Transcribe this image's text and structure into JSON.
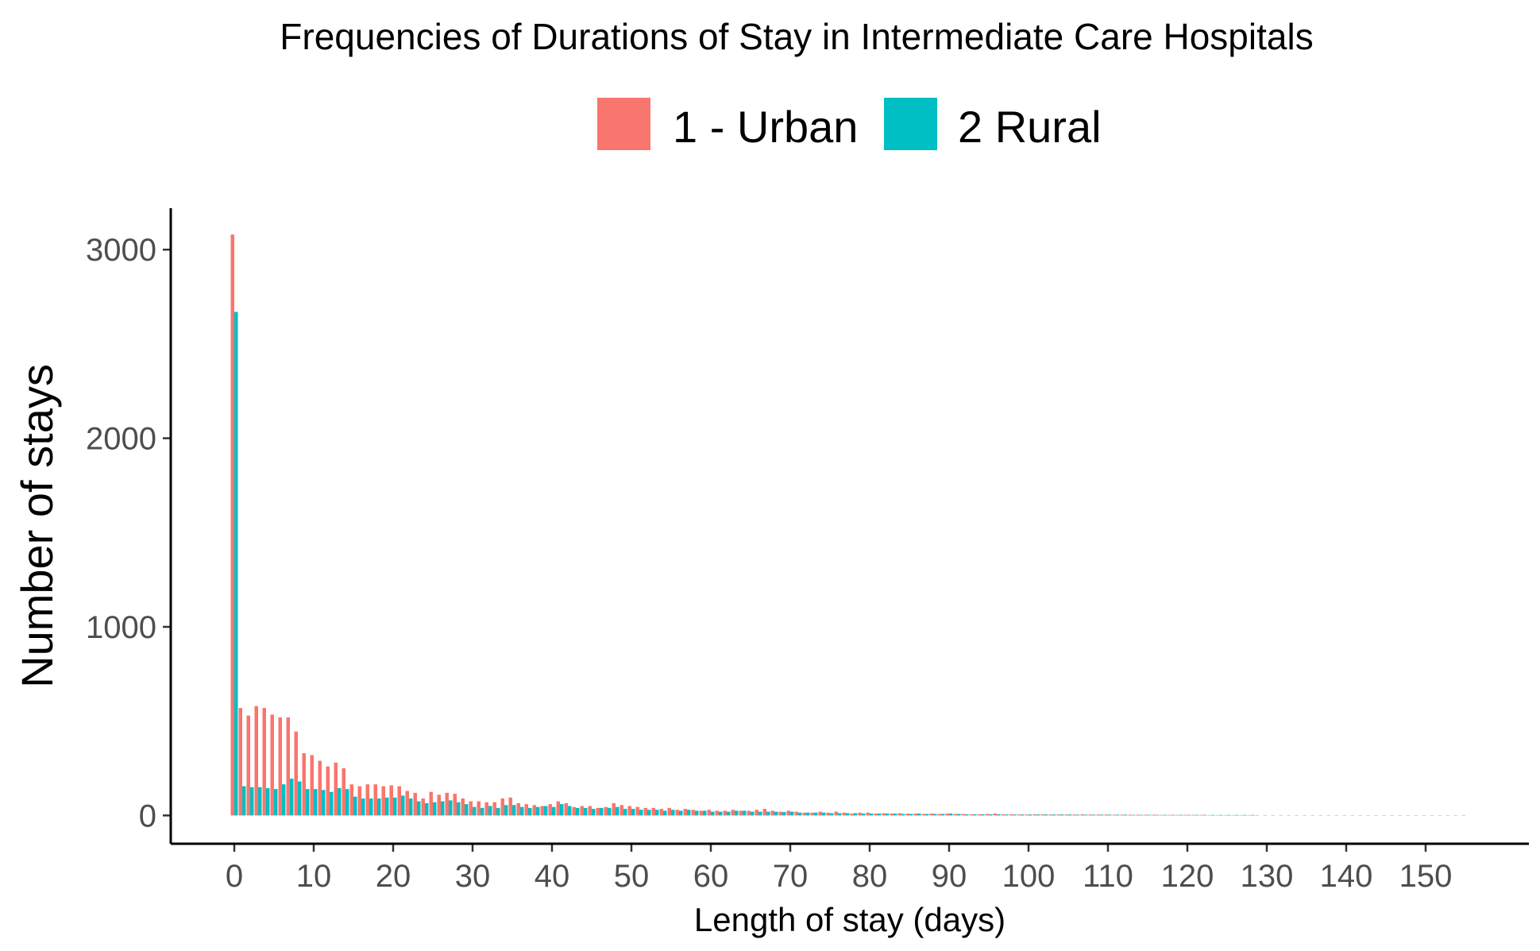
{
  "chart_data": {
    "type": "bar",
    "title": "Frequencies of Durations of Stay in Intermediate Care Hospitals",
    "xlabel": "Length of stay (days)",
    "ylabel": "Number of stays",
    "xlim": [
      -8,
      163
    ],
    "ylim": [
      -150,
      3220
    ],
    "x_ticks": [
      0,
      10,
      20,
      30,
      40,
      50,
      60,
      70,
      80,
      90,
      100,
      110,
      120,
      130,
      140,
      150
    ],
    "y_ticks": [
      0,
      1000,
      2000,
      3000
    ],
    "grid": false,
    "legend_position": "top",
    "series": [
      {
        "name": "1 - Urban",
        "color": "#F8766D",
        "x": [
          0,
          1,
          2,
          3,
          4,
          5,
          6,
          7,
          8,
          9,
          10,
          11,
          12,
          13,
          14,
          15,
          16,
          17,
          18,
          19,
          20,
          21,
          22,
          23,
          24,
          25,
          26,
          27,
          28,
          29,
          30,
          31,
          32,
          33,
          34,
          35,
          36,
          37,
          38,
          39,
          40,
          41,
          42,
          43,
          44,
          45,
          46,
          47,
          48,
          49,
          50,
          51,
          52,
          53,
          54,
          55,
          56,
          57,
          58,
          59,
          60,
          61,
          62,
          63,
          64,
          65,
          66,
          67,
          68,
          69,
          70,
          71,
          72,
          73,
          74,
          75,
          76,
          77,
          78,
          79,
          80,
          81,
          82,
          83,
          84,
          85,
          86,
          87,
          88,
          89,
          90,
          91,
          92,
          93,
          94,
          95,
          96,
          97,
          98,
          99,
          100,
          101,
          102,
          103,
          104,
          105,
          106,
          107,
          108,
          109,
          110,
          111,
          112,
          113,
          114,
          115,
          116,
          117,
          118,
          119,
          120,
          121,
          122,
          123,
          124,
          125,
          126,
          127,
          128,
          129,
          130,
          131,
          132,
          133,
          134,
          135,
          136,
          137,
          138,
          139,
          140,
          141,
          142,
          143,
          144,
          145,
          146,
          147,
          148,
          149,
          150,
          151,
          152,
          153,
          154,
          155
        ],
        "values": [
          3080,
          570,
          530,
          580,
          570,
          535,
          520,
          520,
          445,
          330,
          320,
          290,
          260,
          280,
          250,
          165,
          155,
          165,
          165,
          155,
          160,
          155,
          130,
          120,
          90,
          125,
          110,
          120,
          115,
          90,
          75,
          75,
          70,
          70,
          90,
          95,
          65,
          60,
          55,
          50,
          60,
          75,
          65,
          45,
          50,
          50,
          40,
          45,
          65,
          55,
          50,
          45,
          40,
          40,
          35,
          40,
          30,
          35,
          30,
          25,
          30,
          25,
          25,
          30,
          25,
          25,
          30,
          35,
          25,
          20,
          25,
          20,
          15,
          15,
          20,
          15,
          20,
          15,
          10,
          15,
          15,
          10,
          12,
          10,
          12,
          10,
          10,
          8,
          10,
          8,
          10,
          8,
          8,
          6,
          6,
          8,
          10,
          6,
          6,
          5,
          5,
          6,
          6,
          5,
          5,
          5,
          5,
          6,
          5,
          5,
          5,
          4,
          4,
          4,
          4,
          4,
          4,
          3,
          3,
          3,
          3,
          3,
          3,
          2,
          2,
          2,
          2,
          2,
          2,
          2,
          2,
          2,
          2,
          2,
          2,
          2,
          2,
          2,
          2,
          2,
          2,
          2,
          2,
          2,
          2,
          2,
          2,
          2,
          2,
          2,
          2,
          2,
          2,
          2,
          2,
          2
        ]
      },
      {
        "name": "2 Rural",
        "color": "#00BFC4",
        "x": [
          0,
          1,
          2,
          3,
          4,
          5,
          6,
          7,
          8,
          9,
          10,
          11,
          12,
          13,
          14,
          15,
          16,
          17,
          18,
          19,
          20,
          21,
          22,
          23,
          24,
          25,
          26,
          27,
          28,
          29,
          30,
          31,
          32,
          33,
          34,
          35,
          36,
          37,
          38,
          39,
          40,
          41,
          42,
          43,
          44,
          45,
          46,
          47,
          48,
          49,
          50,
          51,
          52,
          53,
          54,
          55,
          56,
          57,
          58,
          59,
          60,
          61,
          62,
          63,
          64,
          65,
          66,
          67,
          68,
          69,
          70,
          71,
          72,
          73,
          74,
          75,
          76,
          77,
          78,
          79,
          80,
          81,
          82,
          83,
          84,
          85,
          86,
          87,
          88,
          89,
          90,
          91,
          92,
          93,
          94,
          95,
          96,
          97,
          98,
          99,
          100,
          101,
          102,
          103,
          104,
          105,
          106,
          107,
          108,
          109,
          110,
          111,
          112,
          113,
          114,
          115,
          116,
          117,
          118,
          119,
          120,
          121,
          122,
          123,
          124,
          125,
          126,
          127,
          128
        ],
        "values": [
          2670,
          155,
          150,
          150,
          145,
          140,
          165,
          195,
          180,
          140,
          140,
          135,
          125,
          145,
          140,
          100,
          90,
          90,
          90,
          95,
          95,
          105,
          90,
          75,
          65,
          70,
          75,
          80,
          70,
          60,
          45,
          40,
          50,
          40,
          55,
          55,
          45,
          40,
          45,
          50,
          45,
          60,
          50,
          40,
          40,
          35,
          40,
          40,
          45,
          35,
          35,
          30,
          30,
          30,
          25,
          30,
          25,
          30,
          25,
          25,
          20,
          20,
          20,
          25,
          25,
          20,
          20,
          20,
          20,
          18,
          20,
          15,
          15,
          15,
          15,
          12,
          12,
          12,
          12,
          10,
          10,
          10,
          10,
          10,
          8,
          8,
          10,
          8,
          8,
          8,
          10,
          8,
          6,
          6,
          6,
          6,
          6,
          5,
          5,
          5,
          5,
          5,
          5,
          5,
          5,
          5,
          4,
          4,
          4,
          4,
          4,
          4,
          4,
          3,
          3,
          3,
          3,
          3,
          3,
          3,
          3,
          3,
          3,
          3,
          3,
          3,
          3,
          3,
          3
        ]
      }
    ]
  }
}
